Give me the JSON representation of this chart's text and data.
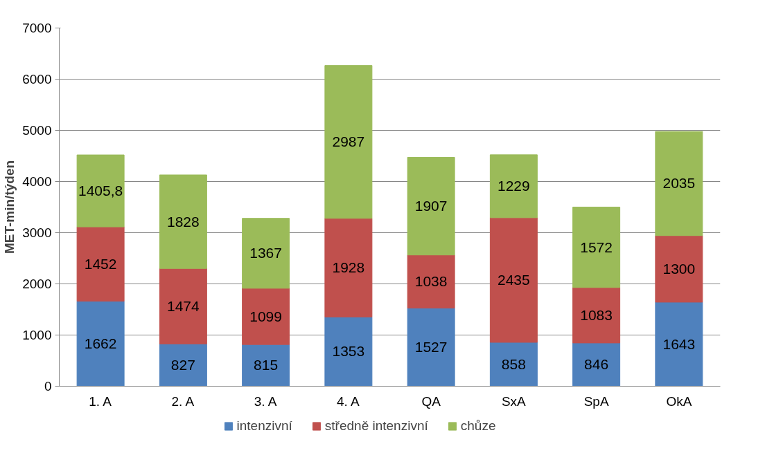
{
  "chart_data": {
    "type": "bar",
    "stacked": true,
    "ylabel": "MET-min/týden",
    "categories": [
      "1. A",
      "2. A",
      "3. A",
      "4. A",
      "QA",
      "SxA",
      "SpA",
      "OkA"
    ],
    "series": [
      {
        "name": "intenzivní",
        "color": "#4f81bd",
        "values": [
          1662,
          827,
          815,
          1353,
          1527,
          858,
          846,
          1643
        ],
        "value_labels": [
          "1662",
          "827",
          "815",
          "1353",
          "1527",
          "858",
          "846",
          "1643"
        ]
      },
      {
        "name": "středně intenzivní",
        "color": "#c0504d",
        "values": [
          1452,
          1474,
          1099,
          1928,
          1038,
          2435,
          1083,
          1300
        ],
        "value_labels": [
          "1452",
          "1474",
          "1099",
          "1928",
          "1038",
          "2435",
          "1083",
          "1300"
        ]
      },
      {
        "name": "chůze",
        "color": "#9bbb59",
        "values": [
          1405.8,
          1828,
          1367,
          2987,
          1907,
          1229,
          1572,
          2035
        ],
        "value_labels": [
          "1405,8",
          "1828",
          "1367",
          "2987",
          "1907",
          "1229",
          "1572",
          "2035"
        ]
      }
    ],
    "ylim": [
      0,
      7000
    ],
    "yticks": [
      0,
      1000,
      2000,
      3000,
      4000,
      5000,
      6000,
      7000
    ],
    "grid": "y",
    "legend": "bottom"
  }
}
